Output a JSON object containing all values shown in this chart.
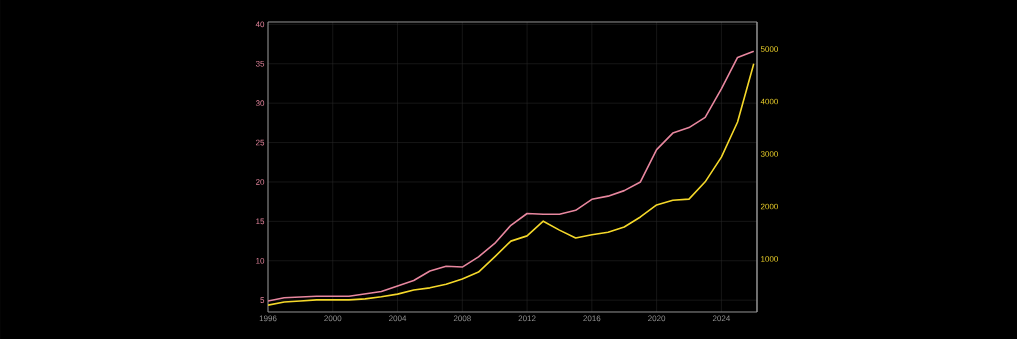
{
  "chart_data": {
    "type": "line",
    "x": [
      1996,
      1997,
      1998,
      1999,
      2000,
      2001,
      2002,
      2003,
      2004,
      2005,
      2006,
      2007,
      2008,
      2009,
      2010,
      2011,
      2012,
      2013,
      2014,
      2015,
      2016,
      2017,
      2018,
      2019,
      2020,
      2021,
      2022,
      2023,
      2024,
      2025,
      2026
    ],
    "series": [
      {
        "color": "#e8879f",
        "axis": "y",
        "values": [
          4.9,
          5.3,
          5.4,
          5.5,
          5.5,
          5.5,
          5.8,
          6.1,
          6.8,
          7.5,
          8.7,
          9.3,
          9.2,
          10.5,
          12.2,
          14.5,
          16.0,
          15.9,
          15.9,
          16.4,
          17.8,
          18.2,
          18.9,
          20.0,
          24.1,
          26.2,
          26.9,
          28.2,
          31.8,
          35.8,
          36.6
        ]
      },
      {
        "color": "#f5d82a",
        "axis": "y2",
        "values": [
          120,
          180,
          200,
          220,
          220,
          220,
          240,
          280,
          330,
          410,
          450,
          520,
          620,
          750,
          1040,
          1340,
          1440,
          1720,
          1550,
          1400,
          1460,
          1510,
          1610,
          1800,
          2030,
          2120,
          2140,
          2470,
          2940,
          3610,
          4720
        ]
      }
    ],
    "xlim": [
      1996,
      2026.2
    ],
    "xticks": [
      1996,
      2000,
      2004,
      2008,
      2012,
      2016,
      2020,
      2024
    ],
    "ylim": [
      3.5,
      40.3
    ],
    "yticks": [
      5,
      10,
      15,
      20,
      25,
      30,
      35,
      40
    ],
    "y2lim": [
      -10,
      5515
    ],
    "y2ticks": [
      1000,
      2000,
      3000,
      4000,
      5000
    ],
    "grid": true
  }
}
